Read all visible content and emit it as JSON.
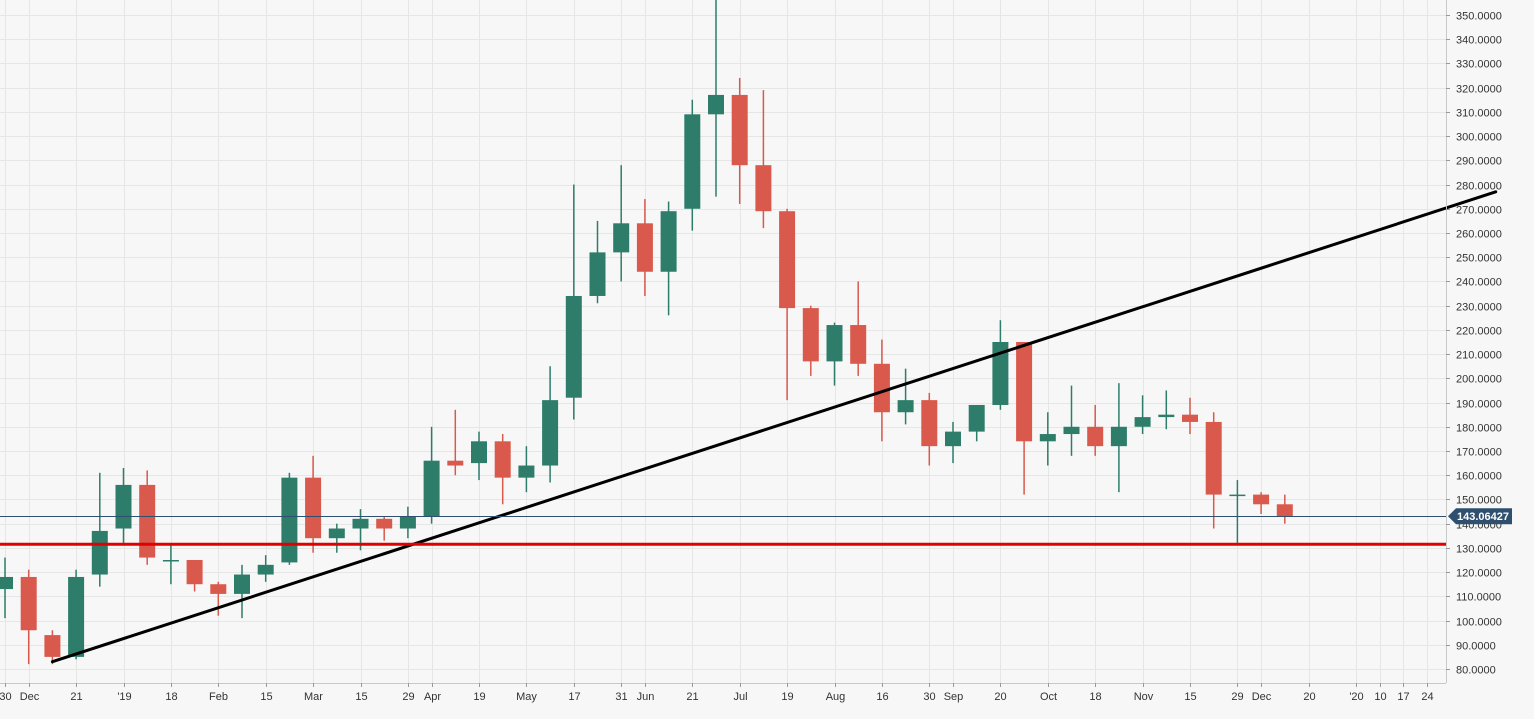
{
  "colors": {
    "background": "#f7f7f7",
    "grid": "#e6e6e6",
    "up": "#2e7d6b",
    "down": "#d9594c",
    "trendline": "#000000",
    "support": "#e00000",
    "last_price_line": "#2f4f6f",
    "price_tag": "#2f4f6f",
    "axis_text": "#333333"
  },
  "chart_data": {
    "type": "candlestick",
    "interval": "weekly",
    "ylim": [
      75,
      357
    ],
    "y_ticks": [
      "80.0000",
      "90.0000",
      "100.0000",
      "110.0000",
      "120.0000",
      "130.0000",
      "140.0000",
      "150.0000",
      "160.0000",
      "170.0000",
      "180.0000",
      "190.0000",
      "200.0000",
      "210.0000",
      "220.0000",
      "230.0000",
      "240.0000",
      "250.0000",
      "260.0000",
      "270.0000",
      "280.0000",
      "290.0000",
      "300.0000",
      "310.0000",
      "320.0000",
      "330.0000",
      "340.0000",
      "350.0000"
    ],
    "x_tick_labels": [
      "30",
      "Dec",
      "21",
      "'19",
      "18",
      "Feb",
      "15",
      "Mar",
      "15",
      "29",
      "Apr",
      "19",
      "May",
      "17",
      "31",
      "Jun",
      "21",
      "Jul",
      "19",
      "Aug",
      "16",
      "30",
      "Sep",
      "20",
      "Oct",
      "18",
      "Nov",
      "15",
      "29",
      "Dec",
      "20",
      "'20",
      "10",
      "17",
      "24"
    ],
    "x_tick_week_index": [
      0,
      1,
      3,
      5,
      7,
      9,
      11,
      13,
      15,
      17,
      18,
      20,
      22,
      24,
      26,
      27,
      29,
      31,
      33,
      35,
      37,
      39,
      40,
      42,
      44,
      46,
      48,
      50,
      52,
      53,
      55,
      57,
      58,
      59,
      60
    ],
    "candles": [
      {
        "o": 113,
        "h": 126,
        "l": 101,
        "c": 118
      },
      {
        "o": 118,
        "h": 121,
        "l": 82,
        "c": 96
      },
      {
        "o": 94,
        "h": 96,
        "l": 82,
        "c": 85
      },
      {
        "o": 85,
        "h": 121,
        "l": 84,
        "c": 118
      },
      {
        "o": 119,
        "h": 161,
        "l": 114,
        "c": 137
      },
      {
        "o": 138,
        "h": 163,
        "l": 131,
        "c": 156
      },
      {
        "o": 156,
        "h": 162,
        "l": 123,
        "c": 126
      },
      {
        "o": 125,
        "h": 132,
        "l": 115,
        "c": 125
      },
      {
        "o": 125,
        "h": 125,
        "l": 112,
        "c": 115
      },
      {
        "o": 115,
        "h": 116,
        "l": 102,
        "c": 111
      },
      {
        "o": 111,
        "h": 123,
        "l": 101,
        "c": 119
      },
      {
        "o": 119,
        "h": 127,
        "l": 116,
        "c": 123
      },
      {
        "o": 124,
        "h": 161,
        "l": 123,
        "c": 159
      },
      {
        "o": 159,
        "h": 168,
        "l": 128,
        "c": 134
      },
      {
        "o": 134,
        "h": 140,
        "l": 128,
        "c": 138
      },
      {
        "o": 138,
        "h": 146,
        "l": 129,
        "c": 142
      },
      {
        "o": 142,
        "h": 143,
        "l": 133,
        "c": 138
      },
      {
        "o": 138,
        "h": 147,
        "l": 134,
        "c": 143
      },
      {
        "o": 143,
        "h": 180,
        "l": 140,
        "c": 166
      },
      {
        "o": 166,
        "h": 187,
        "l": 160,
        "c": 164
      },
      {
        "o": 165,
        "h": 178,
        "l": 158,
        "c": 174
      },
      {
        "o": 174,
        "h": 177,
        "l": 148,
        "c": 159
      },
      {
        "o": 159,
        "h": 172,
        "l": 153,
        "c": 164
      },
      {
        "o": 164,
        "h": 205,
        "l": 157,
        "c": 191
      },
      {
        "o": 192,
        "h": 280,
        "l": 183,
        "c": 234
      },
      {
        "o": 234,
        "h": 265,
        "l": 231,
        "c": 252
      },
      {
        "o": 252,
        "h": 288,
        "l": 240,
        "c": 264
      },
      {
        "o": 264,
        "h": 274,
        "l": 234,
        "c": 244
      },
      {
        "o": 244,
        "h": 273,
        "l": 226,
        "c": 269
      },
      {
        "o": 270,
        "h": 315,
        "l": 261,
        "c": 309
      },
      {
        "o": 309,
        "h": 357,
        "l": 275,
        "c": 317
      },
      {
        "o": 317,
        "h": 324,
        "l": 272,
        "c": 288
      },
      {
        "o": 288,
        "h": 319,
        "l": 262,
        "c": 269
      },
      {
        "o": 269,
        "h": 270,
        "l": 191,
        "c": 229
      },
      {
        "o": 229,
        "h": 230,
        "l": 201,
        "c": 207
      },
      {
        "o": 207,
        "h": 223,
        "l": 197,
        "c": 222
      },
      {
        "o": 222,
        "h": 240,
        "l": 201,
        "c": 206
      },
      {
        "o": 206,
        "h": 216,
        "l": 174,
        "c": 186
      },
      {
        "o": 186,
        "h": 204,
        "l": 181,
        "c": 191
      },
      {
        "o": 191,
        "h": 194,
        "l": 164,
        "c": 172
      },
      {
        "o": 172,
        "h": 182,
        "l": 165,
        "c": 178
      },
      {
        "o": 178,
        "h": 189,
        "l": 174,
        "c": 189
      },
      {
        "o": 189,
        "h": 224,
        "l": 187,
        "c": 215
      },
      {
        "o": 215,
        "h": 215,
        "l": 152,
        "c": 174
      },
      {
        "o": 174,
        "h": 186,
        "l": 164,
        "c": 177
      },
      {
        "o": 177,
        "h": 197,
        "l": 168,
        "c": 180
      },
      {
        "o": 180,
        "h": 189,
        "l": 168,
        "c": 172
      },
      {
        "o": 172,
        "h": 198,
        "l": 153,
        "c": 180
      },
      {
        "o": 180,
        "h": 193,
        "l": 177,
        "c": 184
      },
      {
        "o": 184,
        "h": 195,
        "l": 179,
        "c": 185
      },
      {
        "o": 185,
        "h": 192,
        "l": 177,
        "c": 182
      },
      {
        "o": 182,
        "h": 186,
        "l": 138,
        "c": 152
      },
      {
        "o": 152,
        "h": 158,
        "l": 131,
        "c": 152
      },
      {
        "o": 152,
        "h": 153,
        "l": 144,
        "c": 148
      },
      {
        "o": 148,
        "h": 152,
        "l": 140,
        "c": 143.06
      }
    ],
    "lines": [
      {
        "name": "ascending trendline",
        "type": "trend",
        "from": {
          "week": 2,
          "price": 83
        },
        "to": {
          "week": 62.9,
          "price": 277
        },
        "color": "#000000"
      },
      {
        "name": "support",
        "type": "horizontal",
        "price": 131.5,
        "color": "#e00000"
      },
      {
        "name": "last price",
        "type": "horizontal",
        "price": 143.06427,
        "color": "#2f4f6f"
      }
    ],
    "last_price_label": "143.06427",
    "last_price": 143.06427
  }
}
